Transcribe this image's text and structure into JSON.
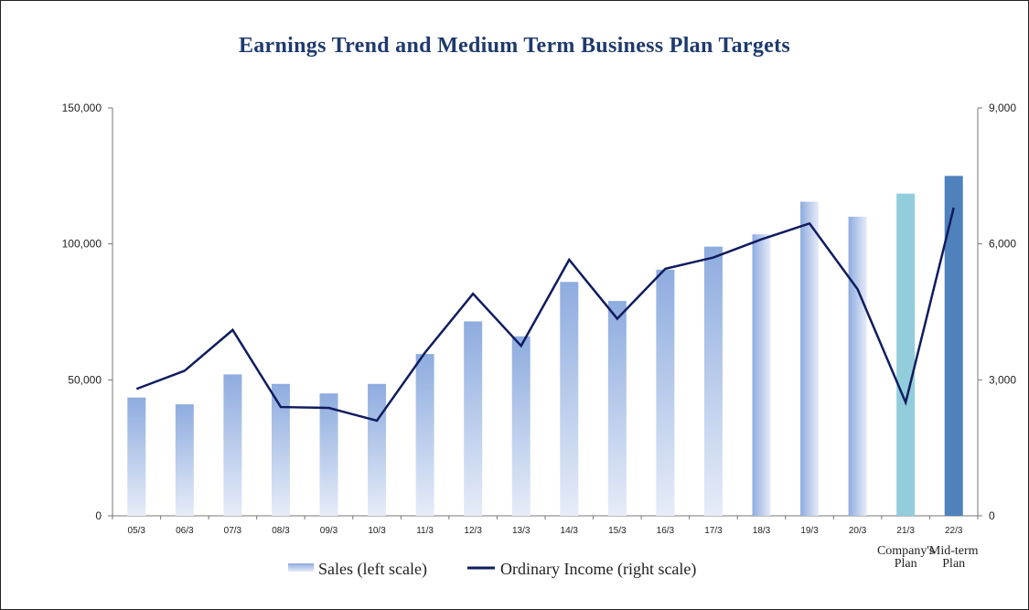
{
  "chart_data": {
    "type": "bar",
    "title": "Earnings Trend and Medium Term Business Plan Targets",
    "categories": [
      "05/3",
      "06/3",
      "07/3",
      "08/3",
      "09/3",
      "10/3",
      "11/3",
      "12/3",
      "13/3",
      "14/3",
      "15/3",
      "16/3",
      "17/3",
      "18/3",
      "19/3",
      "20/3",
      "21/3",
      "22/3"
    ],
    "category_notes": {
      "16": "Company's\nPlan",
      "17": "Mid-term\nPlan"
    },
    "series": [
      {
        "name": "Sales (left scale)",
        "type": "bar",
        "axis": "left",
        "values": [
          43500,
          41000,
          52000,
          48500,
          45000,
          48500,
          59500,
          71500,
          66000,
          86000,
          79000,
          90500,
          99000,
          103500,
          115500,
          110000,
          118500,
          125000
        ]
      },
      {
        "name": "Ordinary Income (right scale)",
        "type": "line",
        "axis": "right",
        "values": [
          2800,
          3200,
          4100,
          2400,
          2380,
          2100,
          3600,
          4900,
          3750,
          5650,
          4350,
          5450,
          5700,
          6100,
          6450,
          5000,
          2500,
          6800
        ]
      }
    ],
    "y_left": {
      "ylim": [
        0,
        150000
      ],
      "ticks": [
        "0",
        "50,000",
        "100,000",
        "150,000"
      ]
    },
    "y_right": {
      "ylim": [
        0,
        9000
      ],
      "ticks": [
        "0",
        "3,000",
        "6,000",
        "9,000"
      ]
    },
    "legend_position": "bottom",
    "grid": false,
    "colors": {
      "bar_gradient_top": "#8eacdf",
      "bar_gradient_bottom": "#e6ecf8",
      "plan_bar": "#92cddc",
      "midterm_bar": "#4f81bd",
      "line": "#0f1c5e",
      "title": "#1f3a6e"
    }
  }
}
